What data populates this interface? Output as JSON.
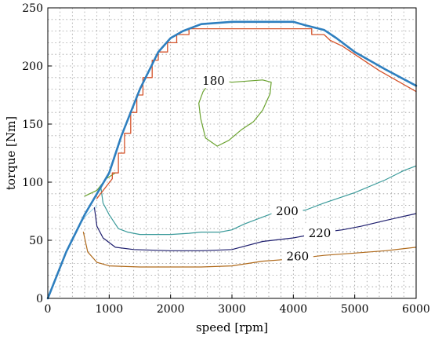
{
  "chart_data": {
    "type": "line",
    "title": "",
    "xlabel": "speed [rpm]",
    "ylabel": "torque [Nm]",
    "xlim": [
      0,
      6000
    ],
    "ylim": [
      0,
      250
    ],
    "x_ticks": [
      0,
      1000,
      2000,
      3000,
      4000,
      5000,
      6000
    ],
    "y_ticks": [
      0,
      50,
      100,
      150,
      200,
      250
    ],
    "grid": true,
    "series": [
      {
        "color": "#2e7fbf",
        "points": [
          [
            0,
            0
          ],
          [
            300,
            40
          ],
          [
            600,
            72
          ],
          [
            1000,
            108
          ],
          [
            1200,
            140
          ],
          [
            1500,
            180
          ],
          [
            1800,
            212
          ],
          [
            2000,
            224
          ],
          [
            2200,
            230
          ],
          [
            2500,
            236
          ],
          [
            3000,
            238
          ],
          [
            3500,
            238
          ],
          [
            4000,
            238
          ],
          [
            4200,
            235
          ],
          [
            4500,
            231
          ],
          [
            4700,
            224
          ],
          [
            5000,
            212
          ],
          [
            5500,
            197
          ],
          [
            6000,
            183
          ]
        ]
      },
      {
        "color": "#d4532b",
        "points": [
          [
            800,
            86
          ],
          [
            1050,
            103
          ],
          [
            1050,
            108
          ],
          [
            1150,
            108
          ],
          [
            1150,
            125
          ],
          [
            1250,
            125
          ],
          [
            1250,
            142
          ],
          [
            1350,
            142
          ],
          [
            1350,
            160
          ],
          [
            1450,
            160
          ],
          [
            1450,
            175
          ],
          [
            1550,
            175
          ],
          [
            1550,
            190
          ],
          [
            1700,
            190
          ],
          [
            1700,
            205
          ],
          [
            1800,
            205
          ],
          [
            1800,
            212
          ],
          [
            1950,
            212
          ],
          [
            1950,
            220
          ],
          [
            2100,
            220
          ],
          [
            2100,
            227
          ],
          [
            2300,
            227
          ],
          [
            2300,
            232
          ],
          [
            4300,
            232
          ],
          [
            4300,
            227
          ],
          [
            4500,
            227
          ],
          [
            4600,
            222
          ],
          [
            4800,
            217
          ],
          [
            5000,
            210
          ],
          [
            5200,
            203
          ],
          [
            5400,
            196
          ],
          [
            5600,
            190
          ],
          [
            5800,
            184
          ],
          [
            6000,
            178
          ]
        ]
      },
      {
        "color": "#6aa22f",
        "labels": [
          "180"
        ],
        "points": [
          [
            2670,
            188
          ],
          [
            2530,
            178
          ],
          [
            2460,
            168
          ],
          [
            2490,
            155
          ],
          [
            2570,
            138
          ],
          [
            2760,
            131
          ],
          [
            2950,
            136
          ],
          [
            3150,
            145
          ],
          [
            3350,
            152
          ],
          [
            3500,
            162
          ],
          [
            3620,
            176
          ],
          [
            3640,
            186
          ],
          [
            3500,
            188
          ],
          [
            3000,
            186
          ]
        ]
      },
      {
        "color": "#6aa22f",
        "points": [
          [
            600,
            88
          ],
          [
            800,
            93
          ],
          [
            950,
            103
          ],
          [
            1100,
            108
          ]
        ]
      },
      {
        "color": "#3a9a9a",
        "labels": [
          "200"
        ],
        "points": [
          [
            860,
            97
          ],
          [
            900,
            82
          ],
          [
            1000,
            72
          ],
          [
            1150,
            60
          ],
          [
            1300,
            57
          ],
          [
            1500,
            55
          ],
          [
            2000,
            55
          ],
          [
            2300,
            56
          ],
          [
            2500,
            57
          ],
          [
            2800,
            57
          ],
          [
            3000,
            59
          ],
          [
            3200,
            64
          ],
          [
            3500,
            70
          ],
          [
            3650,
            73
          ],
          [
            4200,
            76
          ],
          [
            4500,
            82
          ],
          [
            5000,
            91
          ],
          [
            5500,
            102
          ],
          [
            5800,
            110
          ],
          [
            6000,
            114
          ]
        ]
      },
      {
        "color": "#1e1e6e",
        "labels": [
          "220"
        ],
        "points": [
          [
            760,
            78
          ],
          [
            800,
            62
          ],
          [
            900,
            52
          ],
          [
            1100,
            44
          ],
          [
            1400,
            42
          ],
          [
            2000,
            41
          ],
          [
            2500,
            41
          ],
          [
            3000,
            42
          ],
          [
            3500,
            49
          ],
          [
            4000,
            52
          ],
          [
            4300,
            55
          ],
          [
            4500,
            57
          ],
          [
            4800,
            59
          ],
          [
            5100,
            62
          ],
          [
            5500,
            67
          ],
          [
            6000,
            73
          ]
        ]
      },
      {
        "color": "#b06a1b",
        "labels": [
          "260"
        ],
        "points": [
          [
            580,
            57
          ],
          [
            650,
            40
          ],
          [
            800,
            31
          ],
          [
            1000,
            28
          ],
          [
            1500,
            27
          ],
          [
            2000,
            27
          ],
          [
            2500,
            27
          ],
          [
            3000,
            28
          ],
          [
            3500,
            32
          ],
          [
            4000,
            34
          ],
          [
            4500,
            37
          ],
          [
            5000,
            39
          ],
          [
            5500,
            41
          ],
          [
            6000,
            44
          ]
        ]
      },
      {
        "color": "#9ad6ec",
        "points": [
          [
            0,
            0
          ],
          [
            200,
            28
          ],
          [
            400,
            52
          ],
          [
            600,
            70
          ],
          [
            800,
            80
          ]
        ]
      }
    ]
  }
}
